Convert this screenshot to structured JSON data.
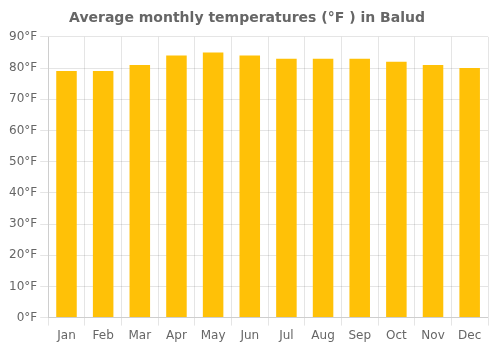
{
  "chart_data": {
    "type": "bar",
    "title": "Average monthly temperatures (°F ) in Balud",
    "categories": [
      "Jan",
      "Feb",
      "Mar",
      "Apr",
      "May",
      "Jun",
      "Jul",
      "Aug",
      "Sep",
      "Oct",
      "Nov",
      "Dec"
    ],
    "values": [
      79,
      79,
      81,
      84,
      85,
      84,
      83,
      83,
      83,
      82,
      81,
      80
    ],
    "color": "#FFC107",
    "ylim": [
      0,
      90
    ],
    "yticks": [
      {
        "value": 0,
        "label": "0°F"
      },
      {
        "value": 10,
        "label": "10°F"
      },
      {
        "value": 20,
        "label": "20°F"
      },
      {
        "value": 30,
        "label": "30°F"
      },
      {
        "value": 40,
        "label": "40°F"
      },
      {
        "value": 50,
        "label": "50°F"
      },
      {
        "value": 60,
        "label": "60°F"
      },
      {
        "value": 70,
        "label": "70°F"
      },
      {
        "value": 80,
        "label": "80°F"
      },
      {
        "value": 90,
        "label": "90°F"
      }
    ],
    "grid": true
  }
}
